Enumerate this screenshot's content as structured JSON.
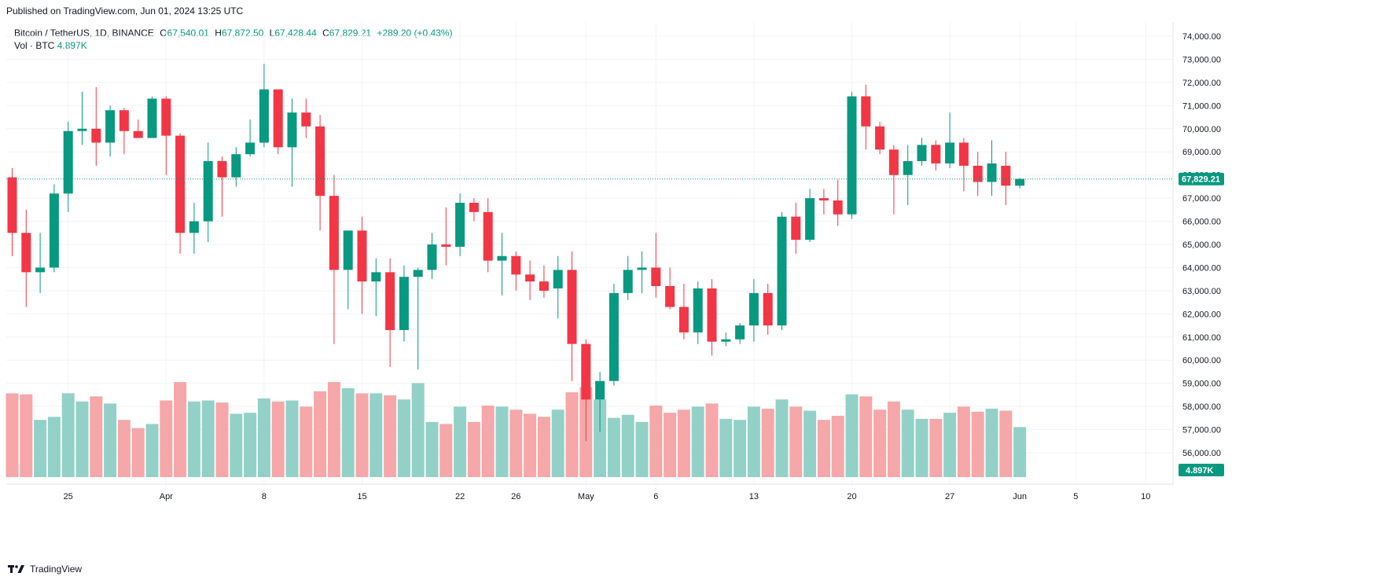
{
  "header": {
    "published": "Published on TradingView.com, Jun 01, 2024 13:25 UTC"
  },
  "legend": {
    "symbol": "Bitcoin / TetherUS, 1D, BINANCE",
    "o_label": "O",
    "o_value": "67,540.01",
    "h_label": "H",
    "h_value": "67,872.50",
    "l_label": "L",
    "l_value": "67,428.44",
    "c_label": "C",
    "c_value": "67,829.21",
    "change": "+289.20 (+0.43%)",
    "vol_label": "Vol · BTC",
    "vol_value": "4.897K"
  },
  "footer": {
    "brand": "TradingView"
  },
  "chart_data": {
    "type": "candlestick",
    "colors": {
      "up": "#089981",
      "down": "#f23645",
      "vol_up": "#93d1c8",
      "vol_down": "#f6a7a9",
      "grid": "#f0f3fa",
      "axis_text": "#131722"
    },
    "y_axis": {
      "min": 55500,
      "max": 74200,
      "ticks": [
        56000,
        57000,
        58000,
        59000,
        60000,
        61000,
        62000,
        63000,
        64000,
        65000,
        66000,
        67000,
        68000,
        69000,
        70000,
        71000,
        72000,
        73000,
        74000
      ],
      "tick_labels": [
        "56,000.00",
        "57,000.00",
        "58,000.00",
        "59,000.00",
        "60,000.00",
        "61,000.00",
        "62,000.00",
        "63,000.00",
        "64,000.00",
        "65,000.00",
        "66,000.00",
        "67,000.00",
        "68,000.00",
        "69,000.00",
        "70,000.00",
        "71,000.00",
        "72,000.00",
        "73,000.00",
        "74,000.00"
      ]
    },
    "last_price": {
      "value": 67829.21,
      "label": "67,829.21"
    },
    "last_volume_label": "4.897K",
    "x_labels": [
      {
        "label": "25",
        "index": 4
      },
      {
        "label": "Apr",
        "index": 11
      },
      {
        "label": "8",
        "index": 18
      },
      {
        "label": "15",
        "index": 25
      },
      {
        "label": "22",
        "index": 32
      },
      {
        "label": "26",
        "index": 36
      },
      {
        "label": "May",
        "index": 41
      },
      {
        "label": "6",
        "index": 46
      },
      {
        "label": "13",
        "index": 53
      },
      {
        "label": "20",
        "index": 60
      },
      {
        "label": "27",
        "index": 67
      },
      {
        "label": "Jun",
        "index": 72
      },
      {
        "label": "5",
        "index": 76
      },
      {
        "label": "10",
        "index": 81
      }
    ],
    "candles": [
      {
        "o": 67900,
        "h": 68300,
        "l": 64500,
        "c": 65500,
        "v": 8.2
      },
      {
        "o": 65500,
        "h": 66500,
        "l": 62300,
        "c": 63800,
        "v": 8.1
      },
      {
        "o": 63800,
        "h": 65500,
        "l": 62900,
        "c": 64000,
        "v": 5.6
      },
      {
        "o": 64000,
        "h": 67600,
        "l": 63800,
        "c": 67200,
        "v": 5.9
      },
      {
        "o": 67200,
        "h": 70300,
        "l": 66400,
        "c": 69900,
        "v": 8.2
      },
      {
        "o": 69900,
        "h": 71600,
        "l": 69300,
        "c": 70000,
        "v": 7.4
      },
      {
        "o": 70000,
        "h": 71800,
        "l": 68400,
        "c": 69400,
        "v": 7.9
      },
      {
        "o": 69400,
        "h": 71000,
        "l": 68800,
        "c": 70800,
        "v": 7.2
      },
      {
        "o": 70800,
        "h": 70900,
        "l": 68900,
        "c": 69900,
        "v": 5.6
      },
      {
        "o": 69900,
        "h": 70400,
        "l": 69600,
        "c": 69600,
        "v": 4.8
      },
      {
        "o": 69600,
        "h": 71400,
        "l": 69600,
        "c": 71300,
        "v": 5.2
      },
      {
        "o": 71300,
        "h": 71400,
        "l": 68000,
        "c": 69700,
        "v": 7.5
      },
      {
        "o": 69700,
        "h": 69800,
        "l": 64600,
        "c": 65500,
        "v": 9.3
      },
      {
        "o": 65500,
        "h": 66800,
        "l": 64600,
        "c": 66000,
        "v": 7.4
      },
      {
        "o": 66000,
        "h": 69400,
        "l": 65100,
        "c": 68600,
        "v": 7.5
      },
      {
        "o": 68600,
        "h": 68800,
        "l": 66200,
        "c": 67900,
        "v": 7.3
      },
      {
        "o": 67900,
        "h": 69200,
        "l": 67500,
        "c": 68900,
        "v": 6.2
      },
      {
        "o": 68900,
        "h": 70400,
        "l": 68800,
        "c": 69400,
        "v": 6.3
      },
      {
        "o": 69400,
        "h": 72800,
        "l": 69200,
        "c": 71700,
        "v": 7.7
      },
      {
        "o": 71700,
        "h": 71700,
        "l": 68900,
        "c": 69200,
        "v": 7.4
      },
      {
        "o": 69200,
        "h": 71300,
        "l": 67500,
        "c": 70700,
        "v": 7.5
      },
      {
        "o": 70700,
        "h": 71300,
        "l": 69600,
        "c": 70100,
        "v": 6.9
      },
      {
        "o": 70100,
        "h": 70600,
        "l": 65600,
        "c": 67100,
        "v": 8.4
      },
      {
        "o": 67100,
        "h": 68000,
        "l": 60700,
        "c": 63900,
        "v": 9.3
      },
      {
        "o": 63900,
        "h": 65500,
        "l": 62200,
        "c": 65600,
        "v": 8.7
      },
      {
        "o": 65600,
        "h": 66200,
        "l": 62000,
        "c": 63400,
        "v": 8.2
      },
      {
        "o": 63400,
        "h": 64400,
        "l": 61900,
        "c": 63800,
        "v": 8.2
      },
      {
        "o": 63800,
        "h": 64400,
        "l": 59700,
        "c": 61300,
        "v": 8.0
      },
      {
        "o": 61300,
        "h": 64100,
        "l": 60800,
        "c": 63600,
        "v": 7.6
      },
      {
        "o": 63600,
        "h": 64000,
        "l": 59600,
        "c": 63900,
        "v": 9.2
      },
      {
        "o": 63900,
        "h": 65500,
        "l": 63500,
        "c": 65000,
        "v": 5.4
      },
      {
        "o": 65000,
        "h": 66600,
        "l": 64100,
        "c": 64900,
        "v": 5.2
      },
      {
        "o": 64900,
        "h": 67200,
        "l": 64500,
        "c": 66800,
        "v": 6.9
      },
      {
        "o": 66800,
        "h": 67000,
        "l": 66000,
        "c": 66400,
        "v": 5.4
      },
      {
        "o": 66400,
        "h": 67000,
        "l": 63800,
        "c": 64300,
        "v": 7.0
      },
      {
        "o": 64300,
        "h": 65500,
        "l": 62800,
        "c": 64500,
        "v": 6.9
      },
      {
        "o": 64500,
        "h": 64700,
        "l": 63000,
        "c": 63700,
        "v": 6.6
      },
      {
        "o": 63700,
        "h": 64300,
        "l": 62600,
        "c": 63400,
        "v": 6.2
      },
      {
        "o": 63400,
        "h": 64100,
        "l": 62700,
        "c": 63000,
        "v": 5.9
      },
      {
        "o": 63100,
        "h": 64500,
        "l": 61800,
        "c": 63900,
        "v": 6.6
      },
      {
        "o": 63900,
        "h": 64700,
        "l": 59100,
        "c": 60700,
        "v": 8.3
      },
      {
        "o": 60700,
        "h": 60900,
        "l": 56500,
        "c": 58300,
        "v": 8.8
      },
      {
        "o": 58300,
        "h": 59500,
        "l": 56900,
        "c": 59100,
        "v": 7.6
      },
      {
        "o": 59100,
        "h": 63300,
        "l": 58900,
        "c": 62900,
        "v": 5.8
      },
      {
        "o": 62900,
        "h": 64500,
        "l": 62600,
        "c": 63900,
        "v": 6.1
      },
      {
        "o": 63900,
        "h": 64700,
        "l": 62900,
        "c": 64000,
        "v": 5.4
      },
      {
        "o": 64000,
        "h": 65500,
        "l": 62700,
        "c": 63200,
        "v": 7.0
      },
      {
        "o": 63200,
        "h": 64000,
        "l": 62200,
        "c": 62300,
        "v": 6.3
      },
      {
        "o": 62300,
        "h": 63300,
        "l": 60900,
        "c": 61200,
        "v": 6.6
      },
      {
        "o": 61200,
        "h": 63400,
        "l": 60700,
        "c": 63100,
        "v": 6.9
      },
      {
        "o": 63100,
        "h": 63500,
        "l": 60200,
        "c": 60800,
        "v": 7.2
      },
      {
        "o": 60800,
        "h": 61200,
        "l": 60600,
        "c": 60900,
        "v": 5.7
      },
      {
        "o": 60900,
        "h": 61600,
        "l": 60700,
        "c": 61500,
        "v": 5.6
      },
      {
        "o": 61500,
        "h": 63500,
        "l": 60800,
        "c": 62900,
        "v": 6.9
      },
      {
        "o": 62900,
        "h": 63300,
        "l": 61100,
        "c": 61500,
        "v": 6.7
      },
      {
        "o": 61500,
        "h": 66400,
        "l": 61300,
        "c": 66200,
        "v": 7.6
      },
      {
        "o": 66200,
        "h": 66800,
        "l": 64600,
        "c": 65200,
        "v": 6.9
      },
      {
        "o": 65200,
        "h": 67400,
        "l": 65100,
        "c": 67000,
        "v": 6.5
      },
      {
        "o": 67000,
        "h": 67400,
        "l": 66300,
        "c": 66900,
        "v": 5.6
      },
      {
        "o": 66900,
        "h": 67800,
        "l": 65800,
        "c": 66300,
        "v": 6.0
      },
      {
        "o": 66300,
        "h": 71600,
        "l": 66100,
        "c": 71400,
        "v": 8.1
      },
      {
        "o": 71400,
        "h": 71900,
        "l": 69100,
        "c": 70100,
        "v": 7.9
      },
      {
        "o": 70100,
        "h": 70300,
        "l": 68900,
        "c": 69100,
        "v": 6.6
      },
      {
        "o": 69100,
        "h": 69300,
        "l": 66300,
        "c": 68000,
        "v": 7.4
      },
      {
        "o": 68000,
        "h": 69300,
        "l": 66700,
        "c": 68600,
        "v": 6.6
      },
      {
        "o": 68600,
        "h": 69600,
        "l": 68400,
        "c": 69300,
        "v": 5.7
      },
      {
        "o": 69300,
        "h": 69500,
        "l": 68200,
        "c": 68500,
        "v": 5.7
      },
      {
        "o": 68500,
        "h": 70700,
        "l": 68300,
        "c": 69400,
        "v": 6.3
      },
      {
        "o": 69400,
        "h": 69600,
        "l": 67300,
        "c": 68400,
        "v": 6.9
      },
      {
        "o": 68400,
        "h": 69000,
        "l": 67100,
        "c": 67700,
        "v": 6.4
      },
      {
        "o": 67700,
        "h": 69500,
        "l": 67100,
        "c": 68500,
        "v": 6.7
      },
      {
        "o": 68400,
        "h": 69000,
        "l": 66700,
        "c": 67540,
        "v": 6.5
      },
      {
        "o": 67540,
        "h": 67872.5,
        "l": 67428.44,
        "c": 67829.21,
        "v": 4.897
      }
    ]
  }
}
